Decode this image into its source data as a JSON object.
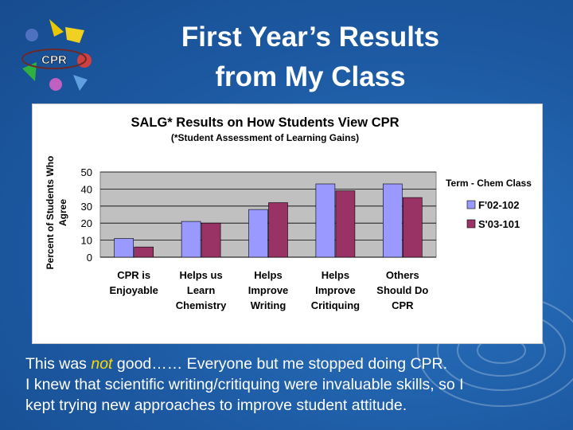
{
  "slide": {
    "title_line1": "First Year’s Results",
    "title_line2": "from My Class",
    "logo_text": "CPR",
    "caption_line1_pre": "This was ",
    "caption_line1_em": "not",
    "caption_line1_post": " good…… Everyone but me stopped doing CPR.",
    "caption_line2": "I knew that scientific writing/critiquing were invaluable skills, so I",
    "caption_line3": "kept trying new approaches to improve student attitude."
  },
  "colors": {
    "series1": "#9999ff",
    "series2": "#993366",
    "plot_bg": "#c0c0c0",
    "caption_emphasis": "#ffd700"
  },
  "chart_data": {
    "type": "bar",
    "title": "SALG* Results on How Students View CPR",
    "subtitle": "(*Student Assessment of Learning Gains)",
    "ylabel_line1": "Percent of Students Who",
    "ylabel_line2": "Agree",
    "xlabel": "",
    "ylim": [
      0,
      50
    ],
    "yticks": [
      0,
      10,
      20,
      30,
      40,
      50
    ],
    "grid": true,
    "legend_title": "Term - Chem Class",
    "legend_position": "right",
    "categories": [
      [
        "CPR is",
        "Enjoyable"
      ],
      [
        "Helps us",
        "Learn",
        "Chemistry"
      ],
      [
        "Helps",
        "Improve",
        "Writing"
      ],
      [
        "Helps",
        "Improve",
        "Critiquing"
      ],
      [
        "Others",
        "Should Do",
        "CPR"
      ]
    ],
    "series": [
      {
        "name": "F'02-102",
        "values": [
          11,
          21,
          28,
          43,
          43
        ]
      },
      {
        "name": "S'03-101",
        "values": [
          6,
          20,
          32,
          39,
          35
        ]
      }
    ]
  }
}
